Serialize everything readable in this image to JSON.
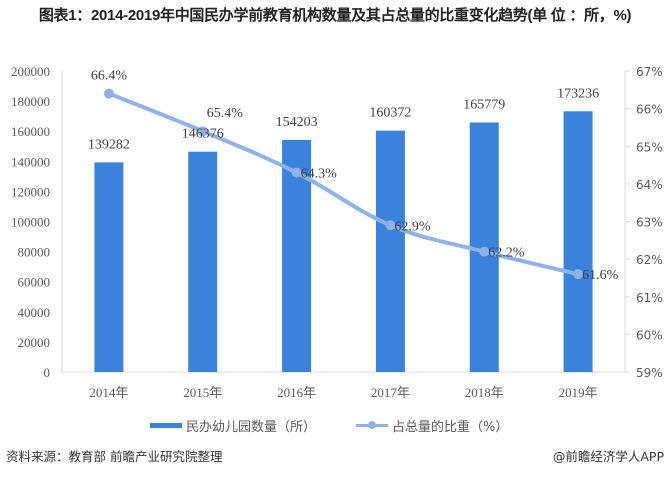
{
  "title": "图表1：2014-2019年中国民办学前教育机构数量及其占总量的比重变化趋势(单 位 ：所，%)",
  "chart_data": {
    "type": "bar+line",
    "title": "图表1：2014-2019年中国民办学前教育机构数量及其占总量的比重变化趋势(单 位 ：所，%)",
    "categories": [
      "2014年",
      "2015年",
      "2016年",
      "2017年",
      "2018年",
      "2019年"
    ],
    "series": [
      {
        "name": "民办幼儿园数量（所）",
        "type": "bar",
        "axis": "left",
        "color": "#3b82dc",
        "values": [
          139282,
          146376,
          154203,
          160372,
          165779,
          173236
        ],
        "labels": [
          "139282",
          "146376",
          "154203",
          "160372",
          "165779",
          "173236"
        ]
      },
      {
        "name": "占总量的比重（%）",
        "type": "line",
        "axis": "right",
        "color": "#8fb3e8",
        "values": [
          66.4,
          65.4,
          64.3,
          62.9,
          62.2,
          61.6
        ],
        "labels": [
          "66.4%",
          "65.4%",
          "64.3%",
          "62.9%",
          "62.2%",
          "61.6%"
        ]
      }
    ],
    "left_axis": {
      "ylim": [
        0,
        200000
      ],
      "ticks": [
        "0",
        "20000",
        "40000",
        "60000",
        "80000",
        "100000",
        "120000",
        "140000",
        "160000",
        "180000",
        "200000"
      ]
    },
    "right_axis": {
      "ylim": [
        59,
        67
      ],
      "ticks": [
        "59%",
        "60%",
        "61%",
        "62%",
        "63%",
        "64%",
        "65%",
        "66%",
        "67%"
      ]
    },
    "grid": false,
    "legend": "bottom"
  },
  "legend": {
    "bar_label": "民办幼儿园数量（所）",
    "line_label": "占总量的比重（%）"
  },
  "footer": {
    "source": "资料来源：教育部 前瞻产业研究院整理",
    "credit": "@前瞻经济学人APP"
  }
}
